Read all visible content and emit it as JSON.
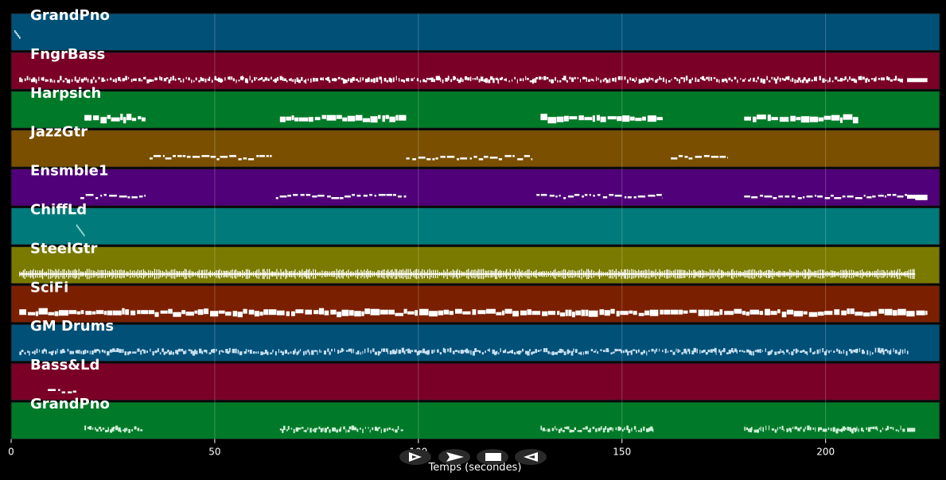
{
  "chart_data": {
    "type": "piano-roll",
    "title": "",
    "xlabel": "Temps (secondes)",
    "ylabel": "",
    "xlim": [
      0,
      228
    ],
    "xticks": [
      0,
      50,
      100,
      150,
      200
    ],
    "grid": true,
    "tracks": [
      {
        "name": "GrandPno",
        "color": "#005078",
        "note_color": "#d0e8f0",
        "segments": [
          {
            "start": 0.8,
            "end": 2.2,
            "style": "sparse"
          }
        ]
      },
      {
        "name": "FngrBass",
        "color": "#7a0028",
        "note_color": "#ffffff",
        "segments": [
          {
            "start": 2,
            "end": 219,
            "style": "dense-thin"
          },
          {
            "start": 220,
            "end": 225,
            "style": "solid"
          }
        ]
      },
      {
        "name": "Harpsich",
        "color": "#007a28",
        "note_color": "#ffffff",
        "segments": [
          {
            "start": 18,
            "end": 33,
            "style": "blocks"
          },
          {
            "start": 66,
            "end": 97,
            "style": "blocks"
          },
          {
            "start": 130,
            "end": 160,
            "style": "blocks"
          },
          {
            "start": 180,
            "end": 208,
            "style": "blocks"
          }
        ]
      },
      {
        "name": "JazzGtr",
        "color": "#7a5000",
        "note_color": "#ffffff",
        "segments": [
          {
            "start": 34,
            "end": 64,
            "style": "dashes"
          },
          {
            "start": 97,
            "end": 128,
            "style": "dashes"
          },
          {
            "start": 162,
            "end": 176,
            "style": "dashes"
          }
        ]
      },
      {
        "name": "Ensmble1",
        "color": "#500078",
        "note_color": "#ffffff",
        "segments": [
          {
            "start": 17,
            "end": 33,
            "style": "dashes"
          },
          {
            "start": 65,
            "end": 97,
            "style": "dashes"
          },
          {
            "start": 129,
            "end": 160,
            "style": "dashes"
          },
          {
            "start": 180,
            "end": 220,
            "style": "dashes"
          },
          {
            "start": 220,
            "end": 225,
            "style": "solid"
          },
          {
            "start": 222,
            "end": 225,
            "style": "low-solid"
          }
        ]
      },
      {
        "name": "ChiffLd",
        "color": "#007a7a",
        "note_color": "#a0e0e0",
        "segments": [
          {
            "start": 16,
            "end": 18,
            "style": "sparse"
          }
        ]
      },
      {
        "name": "SteelGtr",
        "color": "#7a7a00",
        "note_color": "#ffffff",
        "segments": [
          {
            "start": 2,
            "end": 222,
            "style": "dense-thick"
          }
        ]
      },
      {
        "name": "SciFi",
        "color": "#7a2000",
        "note_color": "#ffffff",
        "segments": [
          {
            "start": 2,
            "end": 225,
            "style": "blocks"
          }
        ]
      },
      {
        "name": "GM Drums",
        "color": "#005078",
        "note_color": "#c8e0f0",
        "segments": [
          {
            "start": 2,
            "end": 220,
            "style": "dense-thin"
          }
        ]
      },
      {
        "name": "Bass&Ld",
        "color": "#7a0028",
        "note_color": "#ffffff",
        "segments": [
          {
            "start": 9,
            "end": 16,
            "style": "dashes"
          }
        ]
      },
      {
        "name": "GrandPno",
        "color": "#007a28",
        "note_color": "#d0f0d8",
        "segments": [
          {
            "start": 18,
            "end": 32,
            "style": "dense-thin"
          },
          {
            "start": 66,
            "end": 96,
            "style": "dense-thin"
          },
          {
            "start": 130,
            "end": 158,
            "style": "dense-thin"
          },
          {
            "start": 180,
            "end": 219,
            "style": "dense-thin"
          },
          {
            "start": 220,
            "end": 222,
            "style": "solid"
          }
        ]
      }
    ]
  },
  "controls": [
    {
      "name": "play-button",
      "glyph": "play-icon"
    },
    {
      "name": "forward-button",
      "glyph": "forward-icon"
    },
    {
      "name": "stop-button",
      "glyph": "stop-icon"
    },
    {
      "name": "rewind-button",
      "glyph": "rewind-icon"
    }
  ]
}
